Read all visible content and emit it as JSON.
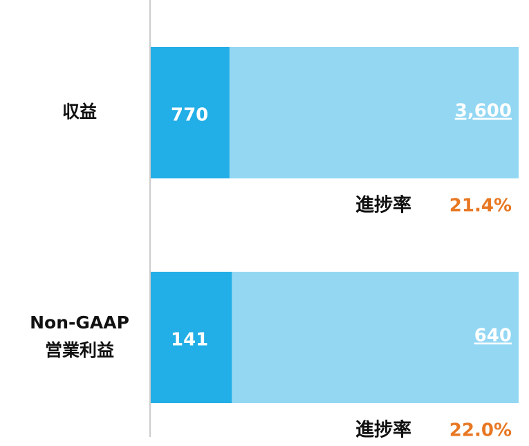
{
  "chart_data": {
    "type": "bar",
    "categories": [
      [
        "収益"
      ],
      [
        "Non-GAAP",
        "営業利益"
      ]
    ],
    "series": [
      {
        "color": "#22aee6",
        "values": [
          770,
          141
        ]
      },
      {
        "color": "#93d7f3",
        "values": [
          3600,
          640
        ],
        "value_labels": [
          "3,600",
          "640"
        ]
      }
    ],
    "progress_label": "進捗率",
    "progress": {
      "color": "#e87722",
      "values": [
        21.4,
        22.0
      ],
      "value_labels": [
        "21.4%",
        "22.0%"
      ]
    }
  }
}
